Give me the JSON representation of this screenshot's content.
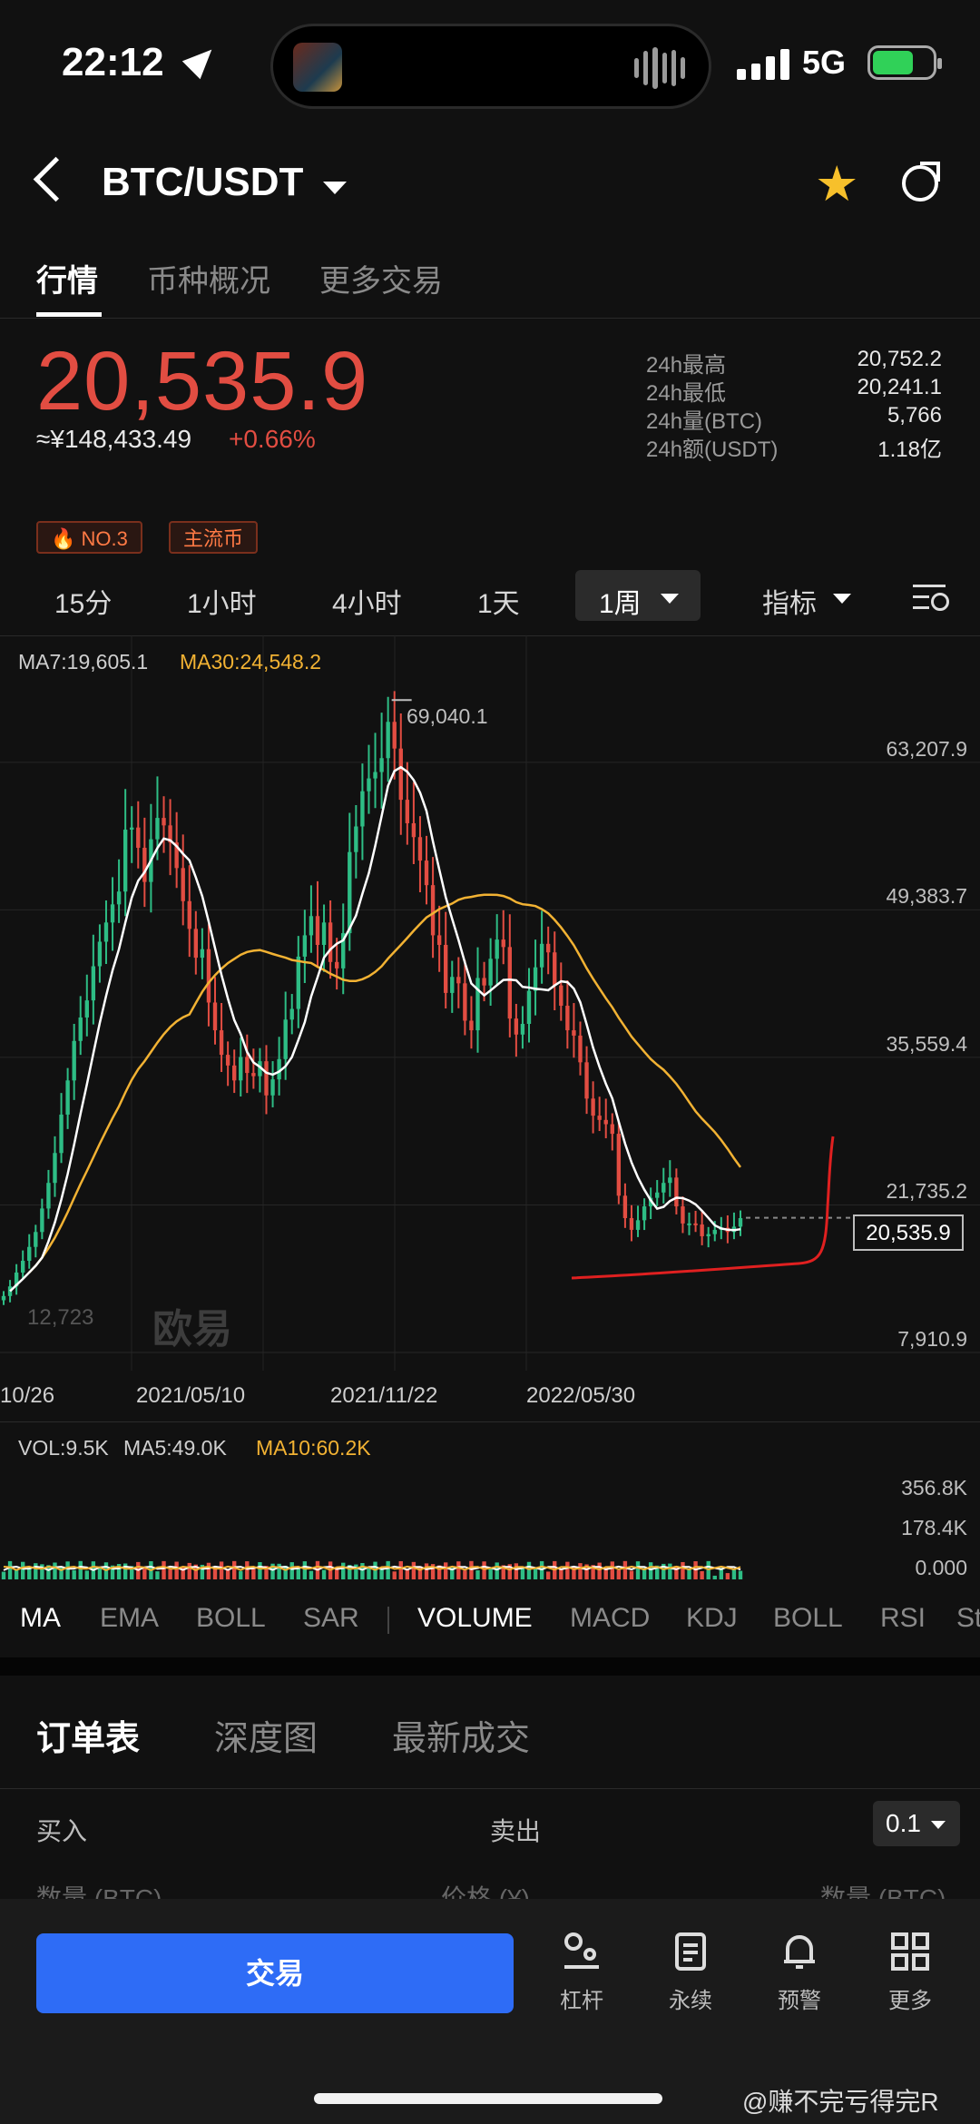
{
  "status_bar": {
    "time": "22:12",
    "network": "5G"
  },
  "header": {
    "pair": "BTC/USDT"
  },
  "tabs": [
    "行情",
    "币种概况",
    "更多交易"
  ],
  "price": {
    "last": "20,535.9",
    "cny": "≈¥148,433.49",
    "change": "+0.66%",
    "stats": [
      {
        "label": "24h最高",
        "value": "20,752.2"
      },
      {
        "label": "24h最低",
        "value": "20,241.1"
      },
      {
        "label": "24h量(BTC)",
        "value": "5,766"
      },
      {
        "label": "24h额(USDT)",
        "value": "1.18亿"
      }
    ]
  },
  "badges": {
    "rank": "NO.3",
    "category": "主流币"
  },
  "periods": [
    "15分",
    "1小时",
    "4小时",
    "1天",
    "1周"
  ],
  "active_period": "1周",
  "indicator_menu": "指标",
  "colors": {
    "up": "#2ebd85",
    "down": "#e24d42",
    "ma7": "#ffffff",
    "ma30": "#f2b233",
    "accent": "#2e6cf6"
  },
  "chart": {
    "ma7_label": "MA7:19,605.1",
    "ma30_label": "MA30:24,548.2",
    "high_marker": "69,040.1",
    "low_marker": "12,723",
    "last_price_tag": "20,535.9",
    "watermark": "欧易",
    "vol_label": "VOL:9.5K",
    "vol_ma5_label": "MA5:49.0K",
    "vol_ma10_label": "MA10:60.2K",
    "vol_axis": [
      "356.8K",
      "178.4K",
      "0.000"
    ]
  },
  "chart_data": {
    "type": "candlestick",
    "interval": "1周",
    "y_axis_ticks": [
      "63,207.9",
      "49,383.7",
      "35,559.4",
      "21,735.2",
      "7,910.9"
    ],
    "ylim": [
      7910.9,
      70000
    ],
    "x_tick_labels": [
      "10/26",
      "2021/05/10",
      "2021/11/22",
      "2022/05/30"
    ],
    "max_marker": 69040.1,
    "min_marker": 12723,
    "last": 20535.9,
    "close_series": [
      13200,
      14100,
      15400,
      16500,
      17800,
      19200,
      21400,
      23800,
      26600,
      30200,
      33400,
      37100,
      39300,
      40900,
      44100,
      46400,
      48200,
      49900,
      51100,
      56900,
      57100,
      55200,
      52000,
      56000,
      58000,
      57300,
      55700,
      53300,
      50200,
      47600,
      44900,
      45700,
      40700,
      38100,
      35800,
      34800,
      33400,
      35600,
      34100,
      33800,
      35200,
      32000,
      33500,
      35400,
      39100,
      40100,
      45000,
      47000,
      48800,
      46100,
      48200,
      44500,
      43900,
      47200,
      54800,
      57200,
      60500,
      61700,
      62300,
      63600,
      67000,
      64500,
      59700,
      57500,
      56200,
      54000,
      51700,
      47000,
      46100,
      41600,
      43100,
      42500,
      39000,
      38100,
      43000,
      42300,
      44800,
      46600,
      45900,
      39200,
      37700,
      38700,
      41800,
      44000,
      46200,
      45400,
      42300,
      40400,
      38100,
      37600,
      35100,
      31700,
      30100,
      29700,
      29300,
      28400,
      22600,
      20500,
      19400,
      20300,
      21600,
      22400,
      22900,
      23800,
      24300,
      21600,
      20000,
      20000,
      19900,
      18800,
      19000,
      19400,
      19600,
      19200,
      19700,
      20500
    ],
    "ma30_note": "MA30 plotted",
    "volume_axis": [
      "356.8K",
      "178.4K",
      "0.000"
    ],
    "legend": [
      {
        "name": "MA7",
        "value": "19,605.1"
      },
      {
        "name": "MA30",
        "value": "24,548.2"
      },
      {
        "name": "VOL",
        "value": "9.5K"
      },
      {
        "name": "MA5",
        "value": "49.0K"
      },
      {
        "name": "MA10",
        "value": "60.2K"
      }
    ]
  },
  "indicators": [
    "MA",
    "EMA",
    "BOLL",
    "SAR",
    "VOLUME",
    "MACD",
    "KDJ",
    "BOLL",
    "RSI",
    "St"
  ],
  "order_book": {
    "tabs": [
      "订单表",
      "深度图",
      "最新成交"
    ],
    "buy": "买入",
    "sell": "卖出",
    "precision": "0.1",
    "qty_left": "数量 (BTC)",
    "price_col": "价格 (¥)",
    "qty_right": "数量 (BTC)"
  },
  "bottom": {
    "trade_button": "交易",
    "nav": [
      {
        "label": "杠杆",
        "icon": "leverage-icon"
      },
      {
        "label": "永续",
        "icon": "contract-icon"
      },
      {
        "label": "预警",
        "icon": "bell-icon"
      },
      {
        "label": "更多",
        "icon": "grid-icon"
      }
    ]
  },
  "watermark_text": "@赚不完亏得完R"
}
